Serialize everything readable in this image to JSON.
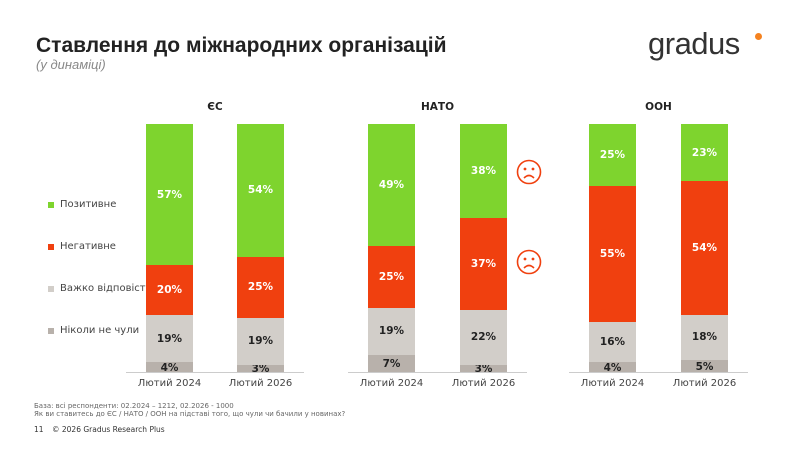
{
  "header": {
    "title": "Ставлення до міжнародних організацій",
    "subtitle": "(у динаміці)",
    "logo": "gradus"
  },
  "colors": {
    "Позитивне": "#7ED42E",
    "Негативне": "#F0400F",
    "Важко відповісти": "#D2CEC9",
    "Ніколи не чули": "#B8B1AB",
    "accent": "#F5821F"
  },
  "chart_data": {
    "type": "bar",
    "stacked": true,
    "legend_placement": "left",
    "series_names": [
      "Позитивне",
      "Негативне",
      "Важко відповісти",
      "Ніколи не чули"
    ],
    "groups": [
      {
        "title": "ЄС",
        "bars": [
          {
            "label": "Лютий 2024",
            "values": [
              57,
              20,
              19,
              4
            ]
          },
          {
            "label": "Лютий 2026",
            "values": [
              54,
              25,
              19,
              3
            ]
          }
        ]
      },
      {
        "title": "НАТО",
        "bars": [
          {
            "label": "Лютий 2024",
            "values": [
              49,
              25,
              19,
              7
            ]
          },
          {
            "label": "Лютий 2026",
            "values": [
              38,
              37,
              22,
              3
            ]
          }
        ]
      },
      {
        "title": "ООН",
        "bars": [
          {
            "label": "Лютий 2024",
            "values": [
              25,
              55,
              16,
              4
            ]
          },
          {
            "label": "Лютий 2026",
            "values": [
              23,
              54,
              18,
              5
            ]
          }
        ]
      }
    ],
    "annotations": [
      "sad-face next to НАТО Лютий 2026 Позитивне",
      "sad-face next to НАТО Лютий 2026 Негативне"
    ]
  },
  "footer": {
    "base": "База: всі респонденти: 02.2024 – 1212, 02.2026 - 1000",
    "question": "Як ви ставитесь до ЄС / НАТО / ООН на підставі того, що чули чи бачили у новинах?",
    "page": "11",
    "copyright": "© 2026 Gradus Research Plus"
  }
}
